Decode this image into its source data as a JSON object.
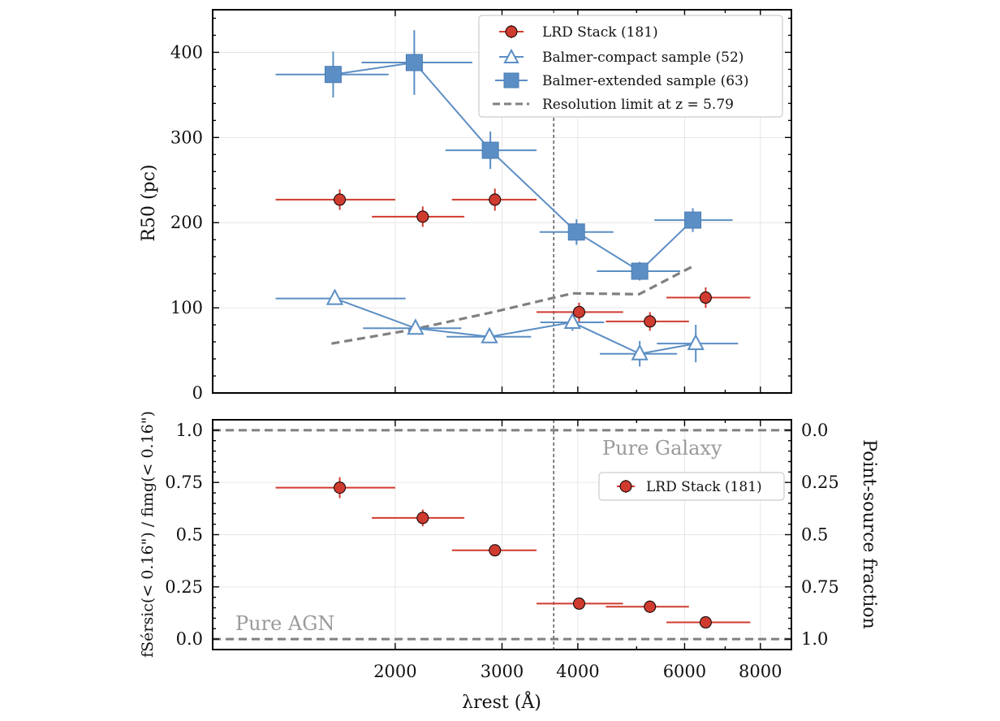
{
  "chart_data": [
    {
      "type": "scatter",
      "panel": "top",
      "xscale": "log",
      "xlim": [
        1000,
        9000
      ],
      "ylim": [
        0,
        450
      ],
      "ylabel": "R50 (pc)",
      "yticks": [
        0,
        100,
        200,
        300,
        400
      ],
      "vline_x": 3650,
      "grid": true,
      "legend_loc": "top-right",
      "series": [
        {
          "name": "LRD Stack (181)",
          "legend": "LRD Stack (181)",
          "color": "#d03b2f",
          "marker": "circle",
          "connected": false,
          "points": [
            {
              "x": 1620,
              "y": 227,
              "xlo": 1270,
              "xhi": 2000,
              "yerr": 12
            },
            {
              "x": 2220,
              "y": 207,
              "xlo": 1830,
              "xhi": 2600,
              "yerr": 12
            },
            {
              "x": 2920,
              "y": 227,
              "xlo": 2480,
              "xhi": 3420,
              "yerr": 13
            },
            {
              "x": 4020,
              "y": 95,
              "xlo": 3420,
              "xhi": 4750,
              "yerr": 11
            },
            {
              "x": 5260,
              "y": 84,
              "xlo": 4450,
              "xhi": 6100,
              "yerr": 11
            },
            {
              "x": 6500,
              "y": 112,
              "xlo": 5600,
              "xhi": 7700,
              "yerr": 12
            }
          ]
        },
        {
          "name": "Balmer-compact sample (52)",
          "legend": "Balmer-compact sample (52)",
          "color": "#5b8ec4",
          "marker": "open-triangle",
          "connected": true,
          "points": [
            {
              "x": 1590,
              "y": 111,
              "xlo": 1270,
              "xhi": 2080,
              "yerr": 7
            },
            {
              "x": 2160,
              "y": 76,
              "xlo": 1770,
              "xhi": 2570,
              "yerr": 7
            },
            {
              "x": 2860,
              "y": 66,
              "xlo": 2430,
              "xhi": 3350,
              "yerr": 7
            },
            {
              "x": 3920,
              "y": 83,
              "xlo": 3470,
              "xhi": 4420,
              "yerr": 10
            },
            {
              "x": 5060,
              "y": 46,
              "xlo": 4350,
              "xhi": 5830,
              "yerr": 15
            },
            {
              "x": 6260,
              "y": 58,
              "xlo": 5400,
              "xhi": 7350,
              "yerr": 22
            }
          ]
        },
        {
          "name": "Balmer-extended sample (63)",
          "legend": "Balmer-extended sample (63)",
          "color": "#5b8ec4",
          "marker": "square",
          "connected": true,
          "points": [
            {
              "x": 1580,
              "y": 374,
              "xlo": 1270,
              "xhi": 1950,
              "yerr": 27
            },
            {
              "x": 2150,
              "y": 388,
              "xlo": 1760,
              "xhi": 2680,
              "yerr": 38
            },
            {
              "x": 2870,
              "y": 285,
              "xlo": 2420,
              "xhi": 3420,
              "yerr": 22
            },
            {
              "x": 3980,
              "y": 189,
              "xlo": 3460,
              "xhi": 4580,
              "yerr": 15
            },
            {
              "x": 5060,
              "y": 143,
              "xlo": 4300,
              "xhi": 5900,
              "yerr": 11
            },
            {
              "x": 6190,
              "y": 203,
              "xlo": 5350,
              "xhi": 7200,
              "yerr": 14
            }
          ]
        },
        {
          "name": "Resolution limit",
          "legend": "Resolution limit at z = 5.79",
          "color": "#808080",
          "line_style": "dashed",
          "points": [
            {
              "x": 1570,
              "y": 58
            },
            {
              "x": 2120,
              "y": 74
            },
            {
              "x": 2900,
              "y": 95
            },
            {
              "x": 3920,
              "y": 117
            },
            {
              "x": 5050,
              "y": 116
            },
            {
              "x": 6200,
              "y": 149
            }
          ]
        }
      ]
    },
    {
      "type": "scatter",
      "panel": "bottom",
      "xscale": "log",
      "xlim": [
        1000,
        9000
      ],
      "ylim": [
        -0.05,
        1.05
      ],
      "xlabel": "λrest (Å)",
      "ylabel": "fSérsic(< 0.16\") / fimg(< 0.16\")",
      "ylabel_right": "Point-source fraction",
      "yticks": [
        0.0,
        0.25,
        0.5,
        0.75,
        1.0
      ],
      "ytick_labels": [
        "0.0",
        "0.25",
        "0.5",
        "0.75",
        "1.0"
      ],
      "yticks_right": [
        1.0,
        0.75,
        0.5,
        0.25,
        0.0
      ],
      "ytick_labels_right": [
        "0.0",
        "0.25",
        "0.5",
        "0.75",
        "1.0"
      ],
      "xticks": [
        2000,
        3000,
        4000,
        6000,
        8000
      ],
      "xtick_labels": [
        "2000",
        "3000",
        "4000",
        "6000",
        "8000"
      ],
      "vline_x": 3650,
      "grid": true,
      "legend_loc": "upper-right",
      "hlines": [
        {
          "y": 1.0,
          "label": "Pure Galaxy",
          "color": "#808080"
        },
        {
          "y": 0.0,
          "label": "Pure AGN",
          "color": "#808080"
        }
      ],
      "annotations": {
        "galaxy": "Pure Galaxy",
        "agn": "Pure AGN"
      },
      "series": [
        {
          "name": "LRD Stack (181)",
          "legend": "LRD Stack (181)",
          "color": "#d03b2f",
          "marker": "circle",
          "points": [
            {
              "x": 1620,
              "y": 0.725,
              "xlo": 1270,
              "xhi": 2000,
              "yerr": 0.05
            },
            {
              "x": 2220,
              "y": 0.58,
              "xlo": 1830,
              "xhi": 2600,
              "yerr": 0.04
            },
            {
              "x": 2920,
              "y": 0.425,
              "xlo": 2480,
              "xhi": 3420,
              "yerr": 0.02
            },
            {
              "x": 4020,
              "y": 0.17,
              "xlo": 3420,
              "xhi": 4750,
              "yerr": 0.02
            },
            {
              "x": 5260,
              "y": 0.155,
              "xlo": 4450,
              "xhi": 6100,
              "yerr": 0.03
            },
            {
              "x": 6500,
              "y": 0.08,
              "xlo": 5600,
              "xhi": 7700,
              "yerr": 0.01
            }
          ]
        }
      ]
    }
  ]
}
